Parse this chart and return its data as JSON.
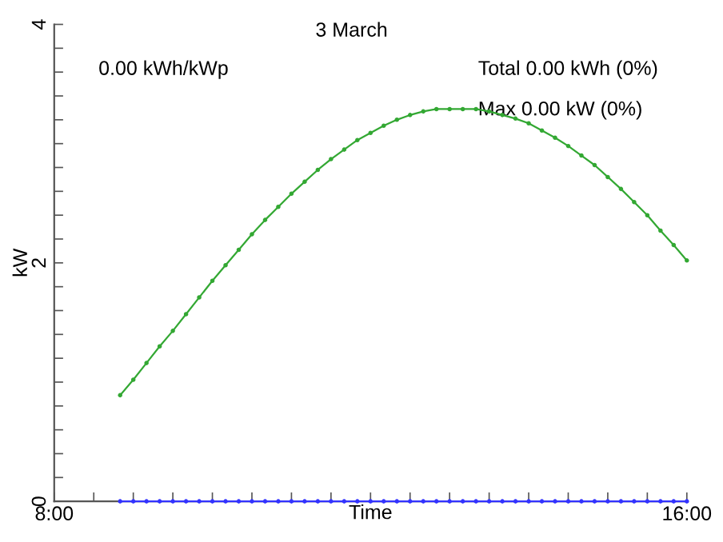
{
  "chart_data": {
    "type": "line",
    "title": "3 March",
    "xlabel": "Time",
    "ylabel": "kW",
    "annotations": [
      "0.00 kWh/kWp",
      "Total 0.00 kWh (0%)",
      "Max 0.00 kW (0%)"
    ],
    "x": [
      8.8333,
      9,
      9.1667,
      9.3333,
      9.5,
      9.6667,
      9.8333,
      10,
      10.1667,
      10.3333,
      10.5,
      10.6667,
      10.8333,
      11,
      11.1667,
      11.3333,
      11.5,
      11.6667,
      11.8333,
      12,
      12.1667,
      12.3333,
      12.5,
      12.6667,
      12.8333,
      13,
      13.1667,
      13.3333,
      13.5,
      13.6667,
      13.8333,
      14,
      14.1667,
      14.3333,
      14.5,
      14.6667,
      14.8333,
      15,
      15.1667,
      15.3333,
      15.5,
      15.6667,
      15.8333,
      16
    ],
    "series": [
      {
        "color": "#33a833",
        "values": [
          0.89,
          1.02,
          1.16,
          1.3,
          1.43,
          1.57,
          1.71,
          1.85,
          1.98,
          2.11,
          2.24,
          2.36,
          2.47,
          2.58,
          2.68,
          2.78,
          2.87,
          2.95,
          3.03,
          3.09,
          3.15,
          3.2,
          3.24,
          3.27,
          3.29,
          3.29,
          3.29,
          3.29,
          3.27,
          3.24,
          3.21,
          3.17,
          3.11,
          3.05,
          2.98,
          2.9,
          2.82,
          2.72,
          2.62,
          2.51,
          2.4,
          2.27,
          2.15,
          2.02
        ]
      },
      {
        "color": "#3333ff",
        "values": [
          0,
          0,
          0,
          0,
          0,
          0,
          0,
          0,
          0,
          0,
          0,
          0,
          0,
          0,
          0,
          0,
          0,
          0,
          0,
          0,
          0,
          0,
          0,
          0,
          0,
          0,
          0,
          0,
          0,
          0,
          0,
          0,
          0,
          0,
          0,
          0,
          0,
          0,
          0,
          0,
          0,
          0,
          0,
          0
        ]
      }
    ],
    "marker": "circle",
    "line_style": "solid",
    "xlim": [
      8,
      16
    ],
    "xticks": [
      {
        "value": 8,
        "label": "8:00"
      },
      {
        "value": 8.5,
        "label": null
      },
      {
        "value": 9,
        "label": null
      },
      {
        "value": 9.5,
        "label": null
      },
      {
        "value": 10,
        "label": null
      },
      {
        "value": 10.5,
        "label": null
      },
      {
        "value": 11,
        "label": null
      },
      {
        "value": 11.5,
        "label": null
      },
      {
        "value": 12,
        "label": null
      },
      {
        "value": 12.5,
        "label": null
      },
      {
        "value": 13,
        "label": null
      },
      {
        "value": 13.5,
        "label": null
      },
      {
        "value": 14,
        "label": null
      },
      {
        "value": 14.5,
        "label": null
      },
      {
        "value": 15,
        "label": null
      },
      {
        "value": 15.5,
        "label": null
      },
      {
        "value": 16,
        "label": "16:00"
      }
    ],
    "ylim": [
      0,
      4
    ],
    "yticks": [
      0,
      {
        "value": 0.2,
        "label": null
      },
      {
        "value": 0.4,
        "label": null
      },
      {
        "value": 0.6,
        "label": null
      },
      {
        "value": 0.8,
        "label": null
      },
      {
        "value": 1,
        "label": null
      },
      {
        "value": 1.2,
        "label": null
      },
      {
        "value": 1.4,
        "label": null
      },
      {
        "value": 1.6,
        "label": null
      },
      {
        "value": 1.8,
        "label": null
      },
      2,
      {
        "value": 2.2,
        "label": null
      },
      {
        "value": 2.4,
        "label": null
      },
      {
        "value": 2.6,
        "label": null
      },
      {
        "value": 2.8,
        "label": null
      },
      {
        "value": 3,
        "label": null
      },
      {
        "value": 3.2,
        "label": null
      },
      {
        "value": 3.4,
        "label": null
      },
      {
        "value": 3.6,
        "label": null
      },
      {
        "value": 3.8,
        "label": null
      },
      4
    ]
  }
}
